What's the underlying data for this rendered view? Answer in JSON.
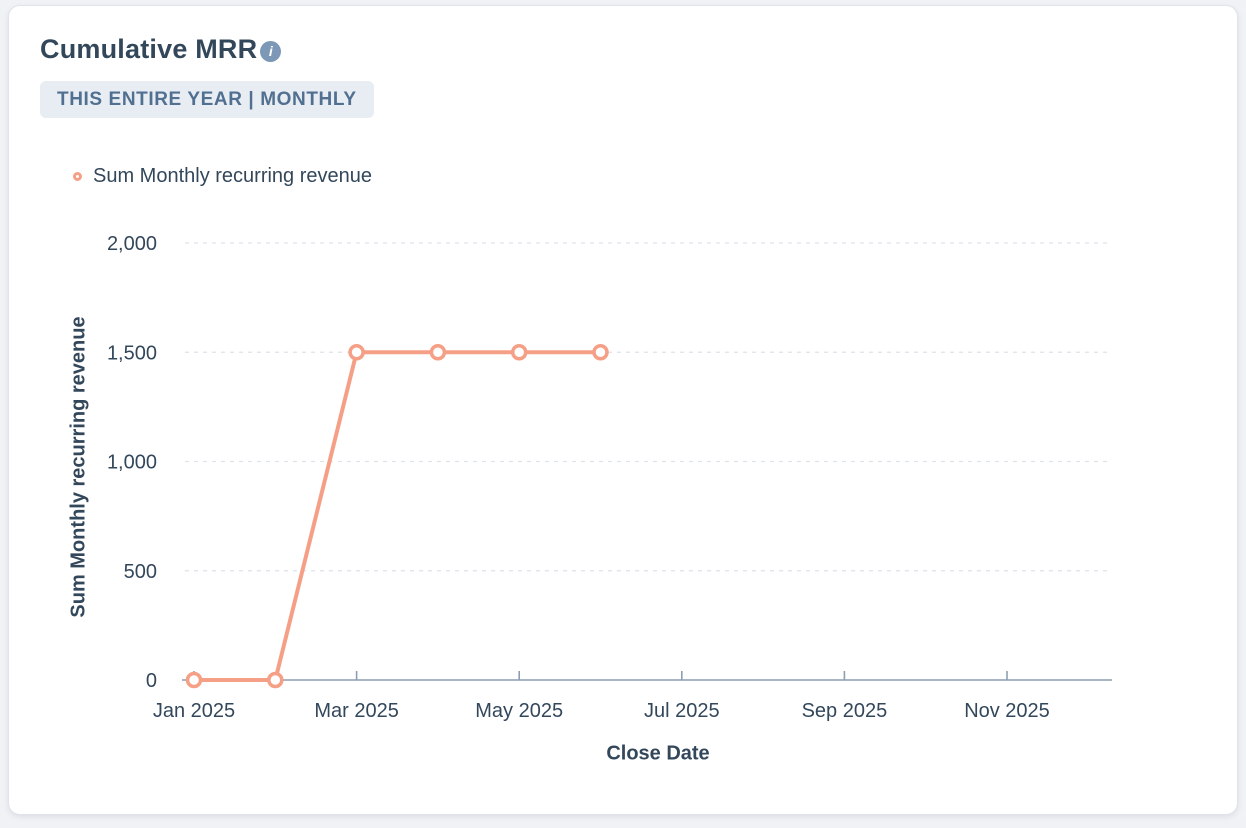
{
  "header": {
    "title": "Cumulative MRR",
    "info_icon_glyph": "i",
    "filter_badge": "THIS ENTIRE YEAR | MONTHLY"
  },
  "legend": {
    "position": "top-left",
    "items": [
      {
        "label": "Sum Monthly recurring revenue",
        "marker": "ring-circle",
        "color": "#f5a086"
      }
    ]
  },
  "chart_data": {
    "type": "line",
    "title": "Cumulative MRR",
    "xlabel": "Close Date",
    "ylabel": "Sum Monthly recurring revenue",
    "ylim": [
      0,
      2000
    ],
    "grid": "horizontal-dashed",
    "legend_position": "top-left",
    "months": [
      "Jan 2025",
      "Feb 2025",
      "Mar 2025",
      "Apr 2025",
      "May 2025",
      "Jun 2025",
      "Jul 2025",
      "Aug 2025",
      "Sep 2025",
      "Oct 2025",
      "Nov 2025",
      "Dec 2025"
    ],
    "xtick_labels": [
      "Jan 2025",
      "Mar 2025",
      "May 2025",
      "Jul 2025",
      "Sep 2025",
      "Nov 2025"
    ],
    "yticks": [
      {
        "value": 0,
        "label": "0"
      },
      {
        "value": 500,
        "label": "500"
      },
      {
        "value": 1000,
        "label": "1,000"
      },
      {
        "value": 1500,
        "label": "1,500"
      },
      {
        "value": 2000,
        "label": "2,000"
      }
    ],
    "series": [
      {
        "name": "Sum Monthly recurring revenue",
        "color": "#f5a086",
        "marker": "ring-circle",
        "points": [
          {
            "x": "Jan 2025",
            "y": 0
          },
          {
            "x": "Feb 2025",
            "y": 0
          },
          {
            "x": "Mar 2025",
            "y": 1500
          },
          {
            "x": "Apr 2025",
            "y": 1500
          },
          {
            "x": "May 2025",
            "y": 1500
          },
          {
            "x": "Jun 2025",
            "y": 1500
          }
        ]
      }
    ]
  },
  "colors": {
    "title_text": "#33475b",
    "badge_bg": "#e8edf3",
    "badge_text": "#516f90",
    "info_icon_bg": "#7c98b6",
    "series_line": "#f5a086",
    "gridline": "#dde3ea",
    "axis_line": "#8d9eb2",
    "tick_label": "#33475b",
    "card_bg": "#ffffff",
    "page_bg": "#f1f2f6"
  }
}
